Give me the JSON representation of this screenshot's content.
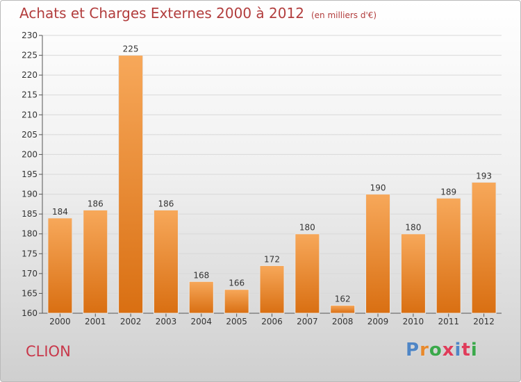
{
  "title": "Achats et Charges Externes 2000 à 2012",
  "unit_label": "(en milliers d'€)",
  "commune": "CLION",
  "logo": {
    "text": "Proxiti",
    "letter_colors": [
      "#4f86c6",
      "#e8892b",
      "#3aa94a",
      "#e03c5a",
      "#4f86c6",
      "#e03c5a",
      "#3aa94a"
    ]
  },
  "colors": {
    "title": "#b23d3d",
    "bar_top": "#f7a85a",
    "bar_bottom": "#d96f12",
    "commune": "#c8374a"
  },
  "chart_data": {
    "type": "bar",
    "title": "Achats et Charges Externes 2000 à 2012",
    "xlabel": "",
    "ylabel": "",
    "categories": [
      "2000",
      "2001",
      "2002",
      "2003",
      "2004",
      "2005",
      "2006",
      "2007",
      "2008",
      "2009",
      "2010",
      "2011",
      "2012"
    ],
    "values": [
      184,
      186,
      225,
      186,
      168,
      166,
      172,
      180,
      162,
      190,
      180,
      189,
      193
    ],
    "ylim": [
      160,
      230
    ],
    "yticks": [
      160,
      165,
      170,
      175,
      180,
      185,
      190,
      195,
      200,
      205,
      210,
      215,
      220,
      225,
      230
    ],
    "grid": true,
    "legend": "none"
  }
}
